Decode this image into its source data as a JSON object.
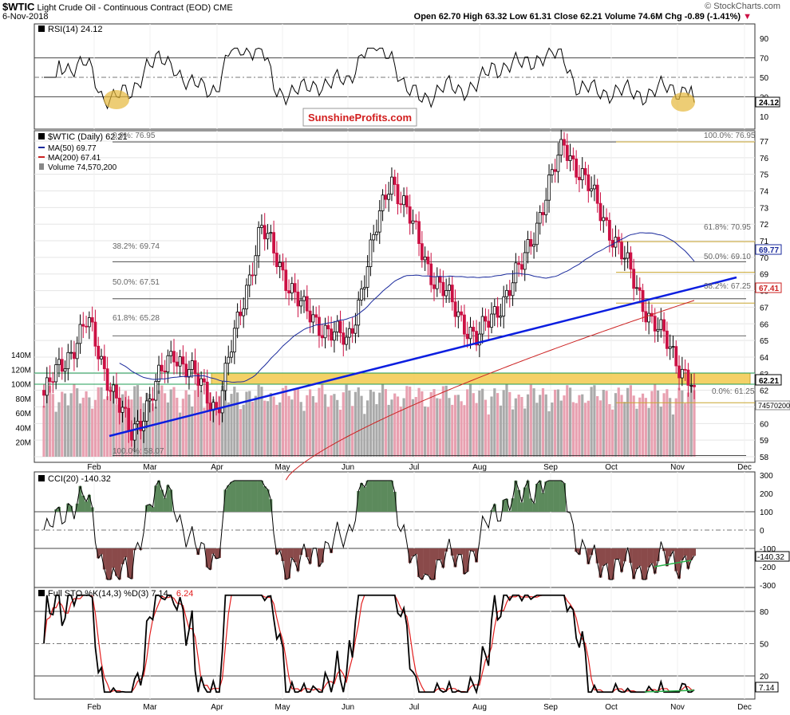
{
  "header": {
    "symbol": "$WTIC",
    "name": "Light Crude Oil - Continuous Contract (EOD)",
    "exchange": "CME",
    "date": "6-Nov-2018",
    "watermark": "© StockCharts.com",
    "ohlc_text": "Open 62.70  High 63.32  Low 61.31  Close 62.21  Volume 74.6M  Chg -0.89 (-1.41%)",
    "chg_arrow": "▼"
  },
  "overlays": {
    "brand": "SunshineProfits.com",
    "rsi_title": "RSI(14) 24.12",
    "price_title": "$WTIC (Daily) 62.21",
    "ma50_label": "MA(50) 69.77",
    "ma200_label": "MA(200) 67.41",
    "volume_label": "Volume 74,570,200",
    "cci_title": "CCI(20) -140.32",
    "sto_title_prefix": "Full STO %K(14,3) %D(3) 7.14,",
    "sto_title_d": "6.24",
    "fib_left_0": "0.0%: 76.95",
    "fib_left_382": "38.2%: 69.74",
    "fib_left_50": "50.0%: 67.51",
    "fib_left_618": "61.8%: 65.28",
    "fib_left_100": "100.0%: 58.07",
    "fib_right_100": "100.0%: 76.95",
    "fib_right_618": "61.8%: 70.95",
    "fib_right_50": "50.0%: 69.10",
    "fib_right_382": "38.2%: 67.25",
    "fib_right_0": "0.0%: 61.25"
  },
  "value_tags": {
    "rsi": "24.12",
    "ma50": "69.77",
    "ma200": "67.41",
    "price": "62.21",
    "volume": "74570200",
    "cci": "-140.32",
    "sto": "7.14"
  },
  "axes": {
    "months": [
      "Feb",
      "Mar",
      "Apr",
      "May",
      "Jun",
      "Jul",
      "Aug",
      "Sep",
      "Oct",
      "Nov",
      "Dec"
    ],
    "rsi_ticks": [
      "90",
      "70",
      "50",
      "30",
      "10"
    ],
    "price_ticks": [
      "77",
      "76",
      "75",
      "74",
      "73",
      "72",
      "71",
      "70",
      "69",
      "68",
      "67",
      "66",
      "65",
      "64",
      "63",
      "62",
      "61",
      "60",
      "59",
      "58"
    ],
    "volume_ticks": [
      "140M",
      "120M",
      "100M",
      "80M",
      "60M",
      "40M",
      "20M"
    ],
    "cci_ticks": [
      "300",
      "200",
      "100",
      "0",
      "-100",
      "-200",
      "-300"
    ],
    "sto_ticks": [
      "80",
      "50",
      "20"
    ]
  },
  "colors": {
    "up_candle": "#000000",
    "down_candle": "#cc1144",
    "ma50": "#1a2a9c",
    "ma200": "#cc2222",
    "trendline": "#0b1ee0",
    "support_band": "#f2c94c",
    "brand_text": "#d21e1e",
    "highlight": "#e6b83a",
    "sto_d": "#e32020",
    "divergence": "#2bb24c",
    "cci_positive_fill": "#5c8a5c",
    "cci_negative_fill": "#8a4a4a"
  },
  "chart_data": {
    "type": "line",
    "ohlc_last": {
      "open": 62.7,
      "high": 63.32,
      "low": 61.31,
      "close": 62.21,
      "volume": "74.6M",
      "change": -0.89,
      "change_pct": -1.41
    },
    "price_ylim": [
      58,
      77
    ],
    "key_closes": {
      "x": [
        "Jan",
        "Jan-end",
        "Feb-mid",
        "Mar",
        "Apr",
        "May-mid",
        "May-end",
        "Jun-mid",
        "Jul",
        "Jul-end",
        "Aug-mid",
        "Sep",
        "Oct-3",
        "Oct-mid",
        "Oct-end",
        "Nov-6"
      ],
      "values": [
        61.7,
        66.1,
        59.2,
        64.4,
        60.9,
        71.8,
        66.7,
        64.8,
        75.0,
        68.7,
        65.0,
        69.3,
        76.9,
        72.0,
        66.3,
        62.21
      ]
    },
    "fibonacci_left": {
      "0.0%": 76.95,
      "38.2%": 69.74,
      "50.0%": 67.51,
      "61.8%": 65.28,
      "100.0%": 58.07
    },
    "fibonacci_right": {
      "100.0%": 76.95,
      "61.8%": 70.95,
      "50.0%": 69.1,
      "38.2%": 67.25,
      "0.0%": 61.25
    },
    "moving_averages": {
      "MA(50)": 69.77,
      "MA(200)": 67.41
    },
    "volume_ylim_millions": [
      0,
      140
    ],
    "indicators": {
      "RSI(14)": {
        "last": 24.12,
        "ylim": [
          0,
          100
        ],
        "levels": [
          70,
          50,
          30
        ]
      },
      "CCI(20)": {
        "last": -140.32,
        "ylim": [
          -300,
          300
        ],
        "levels": [
          100,
          0,
          -100
        ]
      },
      "Full STO %K(14,3) %D(3)": {
        "k_last": 7.14,
        "d_last": 6.24,
        "ylim": [
          0,
          100
        ],
        "levels": [
          80,
          50,
          20
        ]
      }
    },
    "support_band": [
      61.6,
      62.7
    ]
  }
}
